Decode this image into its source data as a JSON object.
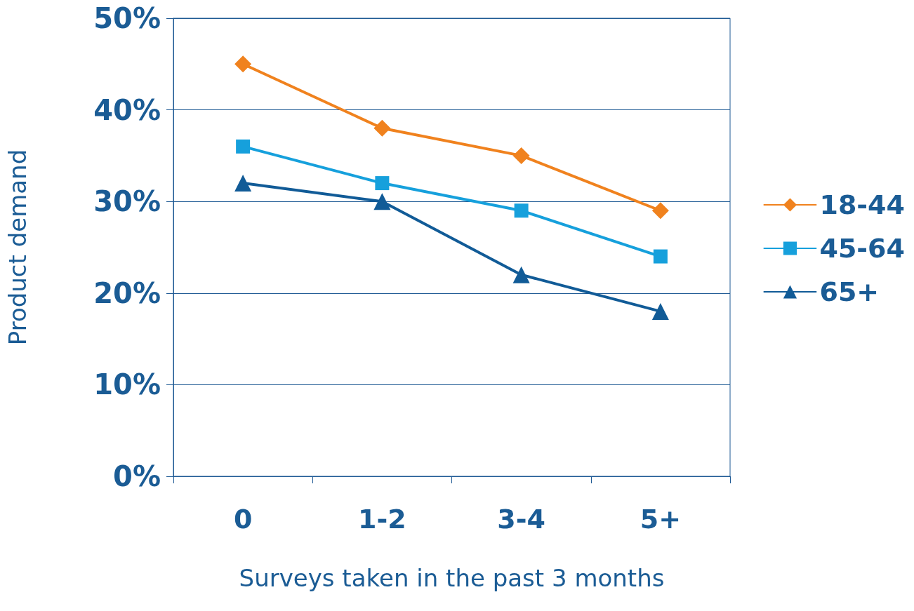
{
  "chart_data": {
    "type": "line",
    "xlabel": "Surveys taken in the past 3 months",
    "ylabel": "Product demand",
    "categories": [
      "0",
      "1-2",
      "3-4",
      "5+"
    ],
    "series": [
      {
        "name": "18-44",
        "color": "#f0821e",
        "marker": "diamond",
        "values": [
          45,
          38,
          35,
          29
        ]
      },
      {
        "name": "45-64",
        "color": "#16a0dc",
        "marker": "square",
        "values": [
          36,
          32,
          29,
          24
        ]
      },
      {
        "name": "65+",
        "color": "#115b97",
        "marker": "triangle",
        "values": [
          32,
          30,
          22,
          18
        ]
      }
    ],
    "ylim": [
      0,
      50
    ],
    "yticks": [
      {
        "value": 0,
        "label": "0%"
      },
      {
        "value": 10,
        "label": "10%"
      },
      {
        "value": 20,
        "label": "20%"
      },
      {
        "value": 30,
        "label": "30%"
      },
      {
        "value": 40,
        "label": "40%"
      },
      {
        "value": 50,
        "label": "50%"
      }
    ],
    "grid": "y",
    "legend": "right",
    "line_style": "solid"
  }
}
